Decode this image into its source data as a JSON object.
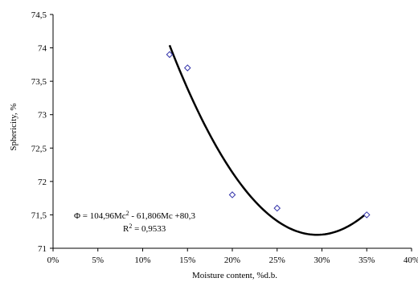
{
  "chart_data": {
    "type": "scatter",
    "title": "",
    "xlabel": "Moisture content, %d.b.",
    "ylabel": "Sphericity, %",
    "xlim": [
      0,
      0.4
    ],
    "ylim": [
      71,
      74.5
    ],
    "x_ticks": [
      0,
      0.05,
      0.1,
      0.15,
      0.2,
      0.25,
      0.3,
      0.35,
      0.4
    ],
    "x_tick_labels": [
      "0%",
      "5%",
      "10%",
      "15%",
      "20%",
      "25%",
      "30%",
      "35%",
      "40%"
    ],
    "y_ticks": [
      71,
      71.5,
      72,
      72.5,
      73,
      73.5,
      74,
      74.5
    ],
    "y_tick_labels": [
      "71",
      "71,5",
      "72",
      "72,5",
      "73",
      "73,5",
      "74",
      "74,5"
    ],
    "grid": false,
    "legend": "none",
    "series": [
      {
        "marker": "diamond-open",
        "color": "#3333aa",
        "x": [
          0.13,
          0.15,
          0.2,
          0.25,
          0.35
        ],
        "y": [
          73.9,
          73.7,
          71.8,
          71.6,
          71.5
        ]
      }
    ],
    "trendline": {
      "type": "polynomial",
      "coefficients": [
        104.96,
        -61.806,
        80.3
      ],
      "x_range": [
        0.13,
        0.35
      ],
      "color": "#000000"
    },
    "annotation": {
      "equation_prefix": "Φ = 104,96Mc",
      "equation_sup": "2",
      "equation_suffix": " - 61,806Mc +80,3",
      "r2_prefix": "R",
      "r2_sup": "2",
      "r2_suffix": " = 0,9533"
    }
  }
}
